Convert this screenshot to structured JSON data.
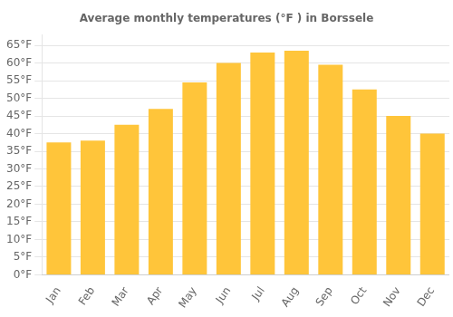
{
  "chart_data": {
    "type": "bar",
    "title": "Average monthly temperatures (°F ) in Borssele",
    "categories": [
      "Jan",
      "Feb",
      "Mar",
      "Apr",
      "May",
      "Jun",
      "Jul",
      "Aug",
      "Sep",
      "Oct",
      "Nov",
      "Dec"
    ],
    "values": [
      37.5,
      38.0,
      42.5,
      47.0,
      54.5,
      60.0,
      63.0,
      63.5,
      59.5,
      52.5,
      45.0,
      40.0
    ],
    "color": "#FFC53A",
    "ylim": [
      0,
      68
    ],
    "yticks": [
      {
        "value": 0,
        "label": "0°F"
      },
      {
        "value": 5,
        "label": "5°F"
      },
      {
        "value": 10,
        "label": "10°F"
      },
      {
        "value": 15,
        "label": "15°F"
      },
      {
        "value": 20,
        "label": "20°F"
      },
      {
        "value": 25,
        "label": "25°F"
      },
      {
        "value": 30,
        "label": "30°F"
      },
      {
        "value": 35,
        "label": "35°F"
      },
      {
        "value": 40,
        "label": "40°F"
      },
      {
        "value": 45,
        "label": "45°F"
      },
      {
        "value": 50,
        "label": "50°F"
      },
      {
        "value": 55,
        "label": "55°F"
      },
      {
        "value": 60,
        "label": "60°F"
      },
      {
        "value": 65,
        "label": "65°F"
      }
    ],
    "grid": true
  }
}
